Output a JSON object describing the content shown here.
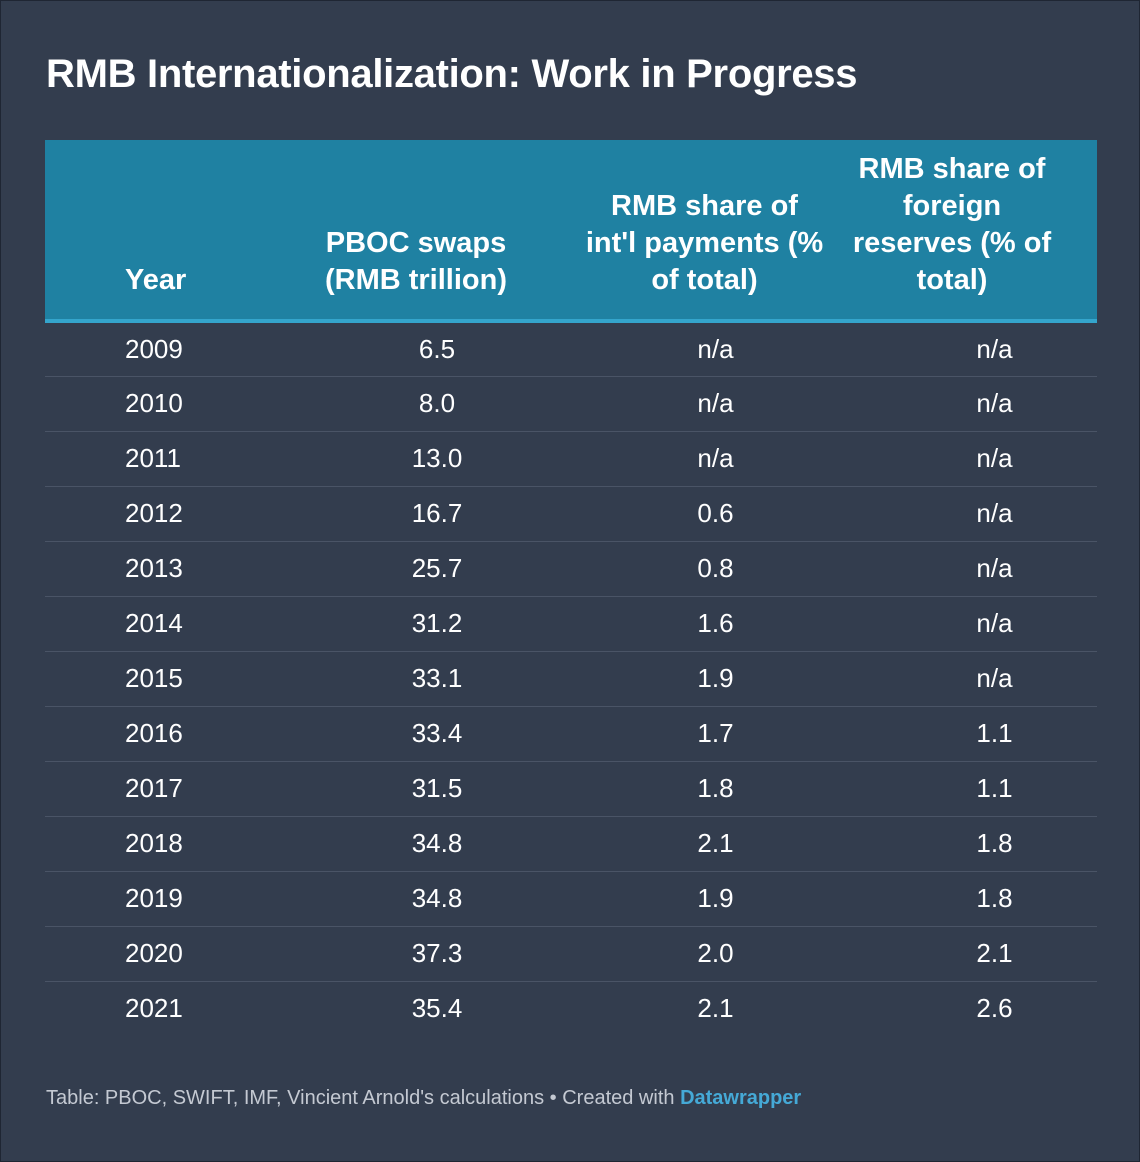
{
  "title": "RMB Internationalization: Work in Progress",
  "chart_data": {
    "type": "table",
    "title": "RMB Internationalization: Work in Progress",
    "columns": [
      [
        "Year"
      ],
      [
        "PBOC swaps",
        "(RMB trillion)"
      ],
      [
        "RMB share of",
        "int'l payments (%",
        "of total)"
      ],
      [
        "RMB share of",
        "foreign",
        "reserves (% of",
        "total)"
      ]
    ],
    "rows": [
      [
        "2009",
        "6.5",
        "n/a",
        "n/a"
      ],
      [
        "2010",
        "8.0",
        "n/a",
        "n/a"
      ],
      [
        "2011",
        "13.0",
        "n/a",
        "n/a"
      ],
      [
        "2012",
        "16.7",
        "0.6",
        "n/a"
      ],
      [
        "2013",
        "25.7",
        "0.8",
        "n/a"
      ],
      [
        "2014",
        "31.2",
        "1.6",
        "n/a"
      ],
      [
        "2015",
        "33.1",
        "1.9",
        "n/a"
      ],
      [
        "2016",
        "33.4",
        "1.7",
        "1.1"
      ],
      [
        "2017",
        "31.5",
        "1.8",
        "1.1"
      ],
      [
        "2018",
        "34.8",
        "2.1",
        "1.8"
      ],
      [
        "2019",
        "34.8",
        "1.9",
        "1.8"
      ],
      [
        "2020",
        "37.3",
        "2.0",
        "2.1"
      ],
      [
        "2021",
        "35.4",
        "2.1",
        "2.6"
      ]
    ]
  },
  "footer": {
    "source": "Table: PBOC, SWIFT, IMF, Vincient Arnold's calculations",
    "separator": " • ",
    "created_with": "Created with ",
    "link_label": "Datawrapper"
  },
  "colors": {
    "background": "#333d4e",
    "header_background": "#1f81a2",
    "header_rule": "#34a5cc",
    "row_divider": "#4a5466",
    "footer_text": "#c4c9d2",
    "link": "#45a9d6"
  }
}
